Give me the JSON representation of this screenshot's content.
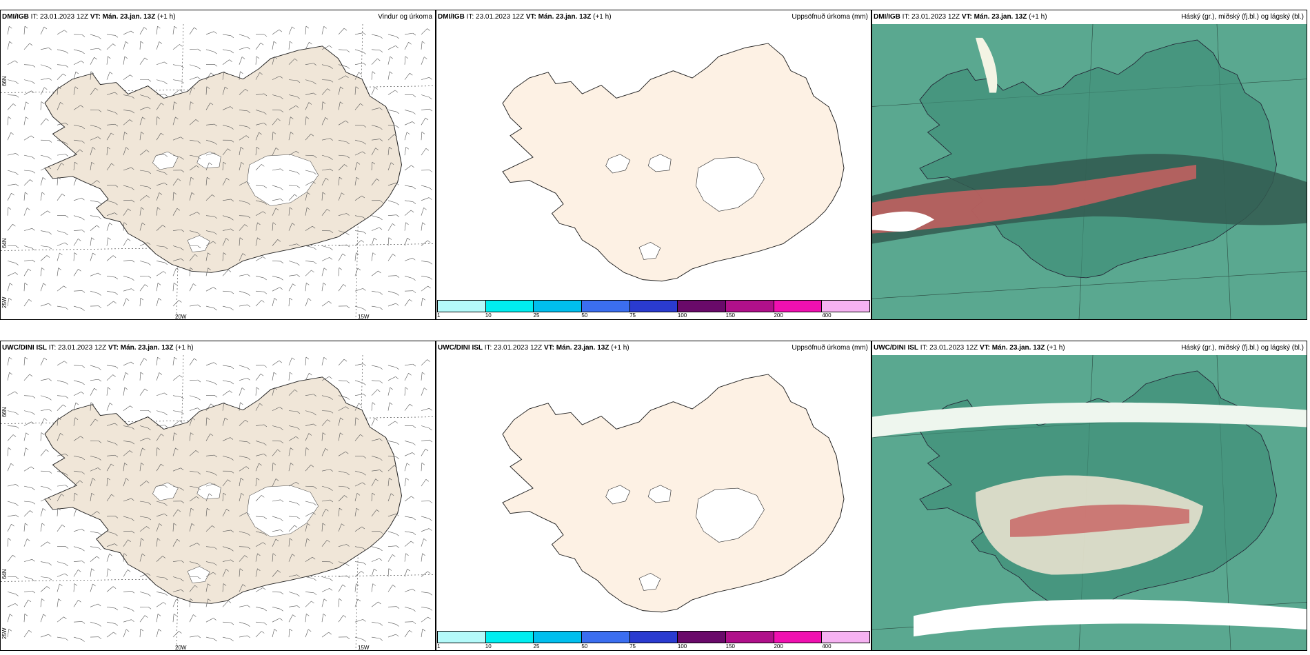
{
  "panels": [
    {
      "model": "DMI/IGB",
      "it_label": "IT:",
      "it": "23.01.2023 12Z",
      "vt_label": "VT:",
      "vt": "Mán. 23.jan. 13Z",
      "lead": "(+1 h)",
      "title": "Vindur og úrkoma",
      "type": "wind"
    },
    {
      "model": "DMI/IGB",
      "it_label": "IT:",
      "it": "23.01.2023 12Z",
      "vt_label": "VT:",
      "vt": "Mán. 23.jan. 13Z",
      "lead": "(+1 h)",
      "title": "Uppsöfnuð úrkoma (mm)",
      "type": "precip"
    },
    {
      "model": "DMI/IGB",
      "it_label": "IT:",
      "it": "23.01.2023 12Z",
      "vt_label": "VT:",
      "vt": "Mán. 23.jan. 13Z",
      "lead": "(+1 h)",
      "title": "Háský (gr.), miðský (fj.bl.) og lágský (bl.)",
      "type": "cloud"
    },
    {
      "model": "UWC/DINI ISL",
      "it_label": "IT:",
      "it": "23.01.2023 12Z",
      "vt_label": "VT:",
      "vt": "Mán. 23.jan. 13Z",
      "lead": "(+1 h)",
      "title": "",
      "type": "wind"
    },
    {
      "model": "UWC/DINI ISL",
      "it_label": "IT:",
      "it": "23.01.2023 12Z",
      "vt_label": "VT:",
      "vt": "Mán. 23.jan. 13Z",
      "lead": "(+1 h)",
      "title": "Uppsöfnuð úrkoma (mm)",
      "type": "precip"
    },
    {
      "model": "UWC/DINI ISL",
      "it_label": "IT:",
      "it": "23.01.2023 12Z",
      "vt_label": "VT:",
      "vt": "Mán. 23.jan. 13Z",
      "lead": "(+1 h)",
      "title": "Háský (gr.), miðský (fj.bl.) og lágský (bl.)",
      "type": "cloud"
    }
  ],
  "colorbar": {
    "ticks": [
      "1",
      "10",
      "25",
      "50",
      "75",
      "100",
      "150",
      "200",
      "400"
    ],
    "colors": [
      "#b4fafa",
      "#00eef0",
      "#00bfee",
      "#3b6ef0",
      "#2a3bd0",
      "#6a0a6a",
      "#b0108a",
      "#f010b0",
      "#f6b2f2"
    ]
  },
  "wind_axis": {
    "lon": [
      "20W",
      "15W"
    ],
    "lat": [
      "66N",
      "64N",
      "25W"
    ]
  },
  "colors": {
    "land": "#f0e6d8",
    "land_precip": "#fdf1e4",
    "cloud_high": "#3e8e78",
    "cloud_low": "#5aa890",
    "cloud_red": "#c86060",
    "cloud_bright": "#00e0a0"
  }
}
